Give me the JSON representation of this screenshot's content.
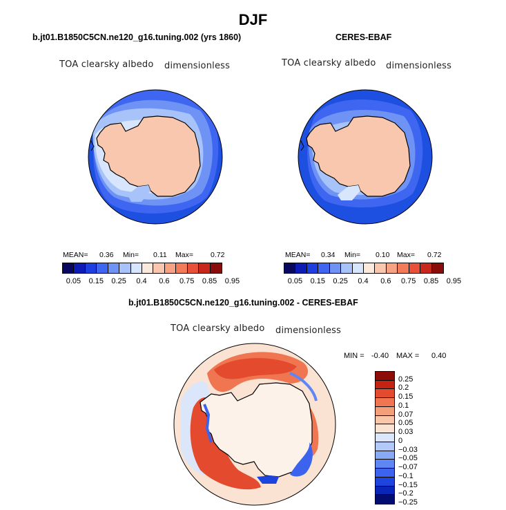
{
  "page": {
    "title": "DJF"
  },
  "colors": {
    "abs_palette": [
      "#08085e",
      "#0d1cb4",
      "#1d3fe0",
      "#3f66f0",
      "#6e93f5",
      "#a7c3fa",
      "#d7e6fc",
      "#fbeadb",
      "#f9c7ae",
      "#f7a283",
      "#f47b5a",
      "#e9503a",
      "#c8271c",
      "#8a0c0a"
    ],
    "diff_palette": [
      "#030c70",
      "#0a26b8",
      "#1d44dd",
      "#3c63ee",
      "#5f86f4",
      "#89a9f7",
      "#b3c9f9",
      "#dbe6fb",
      "#fbe3d4",
      "#f9c6aa",
      "#f59e7a",
      "#ef7651",
      "#e34a2e",
      "#c52312",
      "#8e0c07"
    ],
    "coast": "#000000"
  },
  "chart_data": [
    {
      "type": "heatmap",
      "projection": "south-polar-stereographic",
      "title": "b.jt01.B1850C5CN.ne120_g16.tuning.002 (yrs 1860)",
      "variable": "TOA clearsky albedo",
      "units": "dimensionless",
      "stats": {
        "mean_label": "MEAN=",
        "mean": "0.36",
        "min_label": "Min=",
        "min": "0.11",
        "max_label": "Max=",
        "max": "0.72"
      },
      "colorbar": {
        "orientation": "horizontal",
        "labels": [
          "0.05",
          "0.15",
          "0.25",
          "0.4",
          "0.6",
          "0.75",
          "0.85",
          "0.95"
        ]
      }
    },
    {
      "type": "heatmap",
      "projection": "south-polar-stereographic",
      "title": "CERES-EBAF",
      "variable": "TOA clearsky albedo",
      "units": "dimensionless",
      "stats": {
        "mean_label": "MEAN=",
        "mean": "0.34",
        "min_label": "Min=",
        "min": "0.10",
        "max_label": "Max=",
        "max": "0.72"
      },
      "colorbar": {
        "orientation": "horizontal",
        "labels": [
          "0.05",
          "0.15",
          "0.25",
          "0.4",
          "0.6",
          "0.75",
          "0.85",
          "0.95"
        ]
      }
    },
    {
      "type": "heatmap",
      "projection": "south-polar-stereographic",
      "title": "b.jt01.B1850C5CN.ne120_g16.tuning.002 - CERES-EBAF",
      "variable": "TOA clearsky albedo",
      "units": "dimensionless",
      "stats": {
        "min_label": "MIN =",
        "min": "-0.40",
        "max_label": "MAX =",
        "max": "0.40"
      },
      "colorbar": {
        "orientation": "vertical",
        "labels": [
          "0.25",
          "0.2",
          "0.15",
          "0.1",
          "0.07",
          "0.05",
          "0.03",
          "0",
          "−0.03",
          "−0.05",
          "−0.07",
          "−0.1",
          "−0.15",
          "−0.2",
          "−0.25"
        ]
      }
    }
  ]
}
